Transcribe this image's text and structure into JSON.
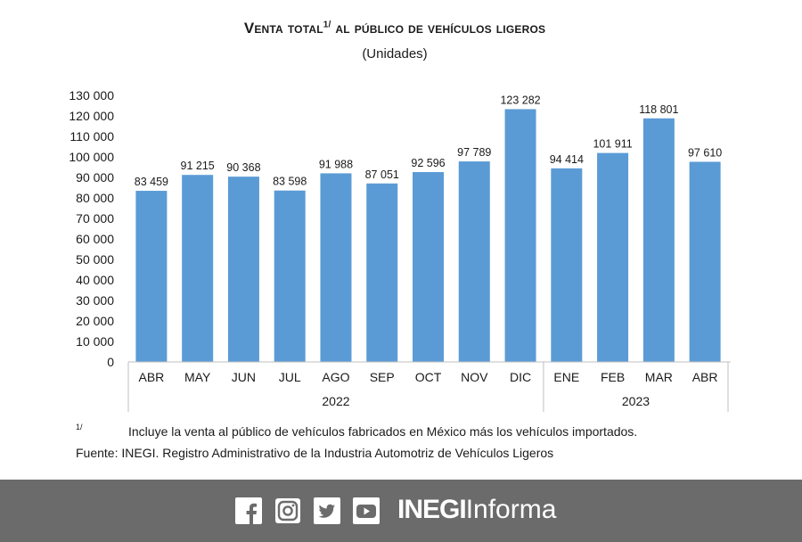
{
  "header": {
    "title_main": "Venta total",
    "title_sup": "1/",
    "title_rest": " al público de vehículos ligeros",
    "subtitle": "(Unidades)"
  },
  "chart_data": {
    "type": "bar",
    "categories": [
      "ABR",
      "MAY",
      "JUN",
      "JUL",
      "AGO",
      "SEP",
      "OCT",
      "NOV",
      "DIC",
      "ENE",
      "FEB",
      "MAR",
      "ABR"
    ],
    "values": [
      83459,
      91215,
      90368,
      83598,
      91988,
      87051,
      92596,
      97789,
      123282,
      94414,
      101911,
      118801,
      97610
    ],
    "value_labels": [
      "83 459",
      "91 215",
      "90 368",
      "83 598",
      "91 988",
      "87 051",
      "92 596",
      "97 789",
      "123 282",
      "94 414",
      "101 911",
      "118 801",
      "97 610"
    ],
    "yticks": [
      "0",
      "10 000",
      "20 000",
      "30 000",
      "40 000",
      "50 000",
      "60 000",
      "70 000",
      "80 000",
      "90 000",
      "100 000",
      "110 000",
      "120 000",
      "130 000"
    ],
    "ylim": [
      0,
      130000
    ],
    "groups": [
      {
        "label": "2022",
        "count": 9
      },
      {
        "label": "2023",
        "count": 4
      }
    ],
    "bar_color": "#5b9bd5",
    "grid": false
  },
  "notes": {
    "marker": "1/",
    "text": "Incluye la venta al público de vehículos fabricados en México más los vehículos importados.",
    "source": "Fuente: INEGI. Registro Administrativo de la Industria Automotriz de Vehículos Ligeros"
  },
  "footer": {
    "background": "#6b6b6b",
    "icons": [
      "facebook-icon",
      "instagram-icon",
      "twitter-icon",
      "youtube-icon"
    ],
    "brand_bold": "INEGI",
    "brand_light": "Informa"
  }
}
